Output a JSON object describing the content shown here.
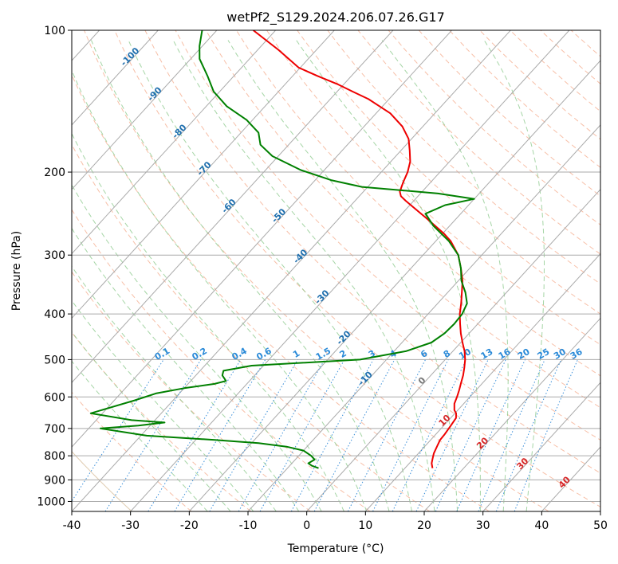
{
  "chart_data": {
    "type": "line",
    "title": "wetPf2_S129.2024.206.07.26.G17",
    "xlabel": "Temperature (°C)",
    "ylabel": "Pressure (hPa)",
    "xlim": [
      -40,
      50
    ],
    "ylim": [
      1050,
      100
    ],
    "y_scale": "log",
    "grid": true,
    "x_ticks": [
      -40,
      -30,
      -20,
      -10,
      0,
      10,
      20,
      30,
      40,
      50
    ],
    "y_ticks": [
      100,
      200,
      300,
      400,
      500,
      600,
      700,
      800,
      900,
      1000
    ],
    "skew_slope": 1.0,
    "colors": {
      "temperature": "#ee0000",
      "dewpoint": "#008000",
      "isotherm_grid": "#aaaaaa",
      "dry_adiabat": "#f4a98a",
      "moist_adiabat": "#8fca8f",
      "mixing_ratio": "#3a8fd9",
      "cold_label": "#1f6fae",
      "warm_label": "#d62728",
      "zero_label": "#777777",
      "mixing_label": "#2a8ad8"
    },
    "series": [
      {
        "key": "temperature",
        "points": [
          {
            "p": 850,
            "t": 14.7
          },
          {
            "p": 830,
            "t": 13.8
          },
          {
            "p": 810,
            "t": 13.2
          },
          {
            "p": 790,
            "t": 12.6
          },
          {
            "p": 760,
            "t": 12.0
          },
          {
            "p": 740,
            "t": 11.6
          },
          {
            "p": 720,
            "t": 11.5
          },
          {
            "p": 690,
            "t": 11.2
          },
          {
            "p": 665,
            "t": 10.9
          },
          {
            "p": 650,
            "t": 10.2
          },
          {
            "p": 640,
            "t": 9.4
          },
          {
            "p": 620,
            "t": 8.4
          },
          {
            "p": 600,
            "t": 7.8
          },
          {
            "p": 580,
            "t": 7.1
          },
          {
            "p": 560,
            "t": 6.3
          },
          {
            "p": 540,
            "t": 5.5
          },
          {
            "p": 520,
            "t": 4.5
          },
          {
            "p": 500,
            "t": 3.4
          },
          {
            "p": 480,
            "t": 2.0
          },
          {
            "p": 460,
            "t": 0.3
          },
          {
            "p": 440,
            "t": -1.4
          },
          {
            "p": 420,
            "t": -3.0
          },
          {
            "p": 400,
            "t": -4.6
          },
          {
            "p": 380,
            "t": -6.0
          },
          {
            "p": 360,
            "t": -7.6
          },
          {
            "p": 340,
            "t": -9.3
          },
          {
            "p": 320,
            "t": -11.5
          },
          {
            "p": 300,
            "t": -14.0
          },
          {
            "p": 280,
            "t": -17.5
          },
          {
            "p": 270,
            "t": -19.8
          },
          {
            "p": 260,
            "t": -22.5
          },
          {
            "p": 250,
            "t": -25.3
          },
          {
            "p": 240,
            "t": -28.3
          },
          {
            "p": 230,
            "t": -31.4
          },
          {
            "p": 225,
            "t": -32.9
          },
          {
            "p": 220,
            "t": -33.8
          },
          {
            "p": 210,
            "t": -34.7
          },
          {
            "p": 200,
            "t": -35.5
          },
          {
            "p": 190,
            "t": -36.7
          },
          {
            "p": 180,
            "t": -38.5
          },
          {
            "p": 170,
            "t": -40.5
          },
          {
            "p": 160,
            "t": -43.5
          },
          {
            "p": 150,
            "t": -47.6
          },
          {
            "p": 140,
            "t": -53.5
          },
          {
            "p": 135,
            "t": -57.3
          },
          {
            "p": 130,
            "t": -61.2
          },
          {
            "p": 125,
            "t": -65.8
          },
          {
            "p": 120,
            "t": -70.3
          },
          {
            "p": 110,
            "t": -76.5
          },
          {
            "p": 100,
            "t": -83.8
          }
        ]
      },
      {
        "key": "dewpoint",
        "points": [
          {
            "p": 850,
            "t": -4.7
          },
          {
            "p": 840,
            "t": -6.2
          },
          {
            "p": 830,
            "t": -7.2
          },
          {
            "p": 815,
            "t": -6.7
          },
          {
            "p": 800,
            "t": -7.9
          },
          {
            "p": 780,
            "t": -10.0
          },
          {
            "p": 765,
            "t": -13.5
          },
          {
            "p": 752,
            "t": -18.8
          },
          {
            "p": 740,
            "t": -27.0
          },
          {
            "p": 725,
            "t": -39.0
          },
          {
            "p": 700,
            "t": -48.0
          },
          {
            "p": 690,
            "t": -42.0
          },
          {
            "p": 680,
            "t": -38.0
          },
          {
            "p": 672,
            "t": -44.0
          },
          {
            "p": 650,
            "t": -52.0
          },
          {
            "p": 610,
            "t": -46.5
          },
          {
            "p": 590,
            "t": -44.0
          },
          {
            "p": 575,
            "t": -40.0
          },
          {
            "p": 563,
            "t": -35.5
          },
          {
            "p": 555,
            "t": -34.0
          },
          {
            "p": 540,
            "t": -35.5
          },
          {
            "p": 528,
            "t": -36.0
          },
          {
            "p": 515,
            "t": -32.0
          },
          {
            "p": 500,
            "t": -14.5
          },
          {
            "p": 480,
            "t": -8.0
          },
          {
            "p": 460,
            "t": -5.0
          },
          {
            "p": 440,
            "t": -4.2
          },
          {
            "p": 420,
            "t": -4.0
          },
          {
            "p": 400,
            "t": -4.2
          },
          {
            "p": 380,
            "t": -5.0
          },
          {
            "p": 360,
            "t": -7.0
          },
          {
            "p": 340,
            "t": -9.5
          },
          {
            "p": 320,
            "t": -11.5
          },
          {
            "p": 300,
            "t": -14.0
          },
          {
            "p": 280,
            "t": -17.8
          },
          {
            "p": 260,
            "t": -22.8
          },
          {
            "p": 245,
            "t": -26.0
          },
          {
            "p": 235,
            "t": -24.0
          },
          {
            "p": 228,
            "t": -20.0
          },
          {
            "p": 222,
            "t": -27.0
          },
          {
            "p": 215,
            "t": -41.0
          },
          {
            "p": 208,
            "t": -47.3
          },
          {
            "p": 198,
            "t": -54.0
          },
          {
            "p": 185,
            "t": -61.0
          },
          {
            "p": 175,
            "t": -64.8
          },
          {
            "p": 165,
            "t": -67.0
          },
          {
            "p": 155,
            "t": -71.0
          },
          {
            "p": 145,
            "t": -76.5
          },
          {
            "p": 135,
            "t": -81.0
          },
          {
            "p": 125,
            "t": -84.5
          },
          {
            "p": 115,
            "t": -88.5
          },
          {
            "p": 108,
            "t": -90.5
          },
          {
            "p": 100,
            "t": -92.5
          }
        ]
      }
    ],
    "isotherm_labels": [
      -100,
      -90,
      -80,
      -70,
      -60,
      -50,
      -40,
      -30,
      -20,
      -10,
      0,
      10,
      20,
      30,
      40
    ],
    "mixing_ratio_labels": [
      "0.1",
      "0.2",
      "0.4",
      "0.6",
      "1",
      "1.5",
      "2",
      "3",
      "4",
      "6",
      "8",
      "10",
      "13",
      "16",
      "20",
      "25",
      "30",
      "36"
    ]
  }
}
